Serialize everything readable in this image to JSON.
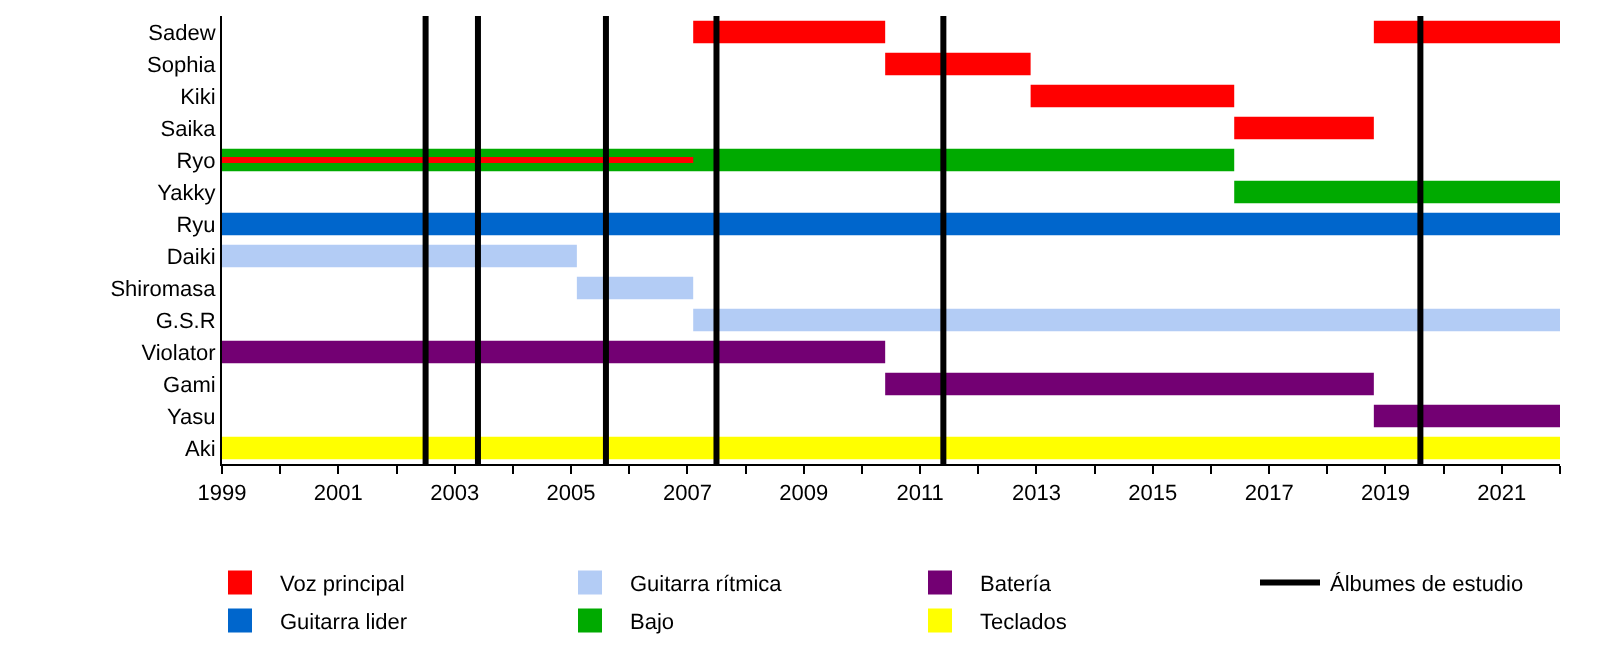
{
  "chart_data": {
    "type": "bar",
    "orientation": "horizontal",
    "categories": [
      "Sadew",
      "Sophia",
      "Kiki",
      "Saika",
      "Ryo",
      "Yakky",
      "Ryu",
      "Daiki",
      "Shiromasa",
      "G.S.R",
      "Violator",
      "Gami",
      "Yasu",
      "Aki"
    ],
    "series": [
      {
        "name": "Voz principal",
        "color": "#ff0000",
        "base": [
          2007.1,
          2010.4,
          2012.9,
          2016.4,
          1999,
          null,
          null,
          null,
          null,
          null,
          null,
          null,
          null,
          null
        ],
        "values": [
          3.3,
          2.5,
          3.5,
          2.4,
          8.1,
          null,
          null,
          null,
          null,
          null,
          null,
          null,
          null,
          null
        ]
      },
      {
        "color": "#ff0000",
        "base": [
          2018.8,
          null,
          null,
          null,
          null,
          null,
          null,
          null,
          null,
          null,
          null,
          null,
          null,
          null
        ],
        "values": [
          3.2,
          null,
          null,
          null,
          null,
          null,
          null,
          null,
          null,
          null,
          null,
          null,
          null,
          null
        ]
      },
      {
        "name": "Guitarra lider",
        "color": "#0066cc",
        "base": [
          null,
          null,
          null,
          null,
          null,
          null,
          1999,
          null,
          null,
          null,
          null,
          null,
          null,
          null
        ],
        "values": [
          null,
          null,
          null,
          null,
          null,
          null,
          23,
          null,
          null,
          null,
          null,
          null,
          null,
          null
        ]
      },
      {
        "name": "Guitarra rítmica",
        "color": "#b3ccf5",
        "base": [
          null,
          null,
          null,
          null,
          null,
          null,
          null,
          1999,
          2005.1,
          2007.1,
          null,
          null,
          null,
          null
        ],
        "values": [
          null,
          null,
          null,
          null,
          null,
          null,
          null,
          6.1,
          2.0,
          14.9,
          null,
          null,
          null,
          null
        ]
      },
      {
        "name": "Bajo",
        "color": "#00aa00",
        "base": [
          null,
          null,
          null,
          null,
          1999,
          2016.4,
          null,
          null,
          null,
          null,
          null,
          null,
          null,
          null
        ],
        "values": [
          null,
          null,
          null,
          null,
          17.4,
          5.6,
          null,
          null,
          null,
          null,
          null,
          null,
          null,
          null
        ]
      },
      {
        "name": "Batería",
        "color": "#730073",
        "base": [
          null,
          null,
          null,
          null,
          null,
          null,
          null,
          null,
          null,
          null,
          1999,
          2010.4,
          2018.8,
          null
        ],
        "values": [
          null,
          null,
          null,
          null,
          null,
          null,
          null,
          null,
          null,
          null,
          11.4,
          8.4,
          3.2,
          null
        ]
      },
      {
        "name": "Teclados",
        "color": "#ffff00",
        "base": [
          null,
          null,
          null,
          null,
          null,
          null,
          null,
          null,
          null,
          null,
          null,
          null,
          null,
          1999
        ],
        "values": [
          null,
          null,
          null,
          null,
          null,
          null,
          null,
          null,
          null,
          null,
          null,
          null,
          null,
          23
        ]
      }
    ],
    "ref_lines": [
      {
        "axis": "x",
        "value": 2002.5,
        "label": "Álbumes de estudio",
        "color": "#000000"
      },
      {
        "axis": "x",
        "value": 2003.4,
        "color": "#000000"
      },
      {
        "axis": "x",
        "value": 2005.6,
        "color": "#000000"
      },
      {
        "axis": "x",
        "value": 2007.5,
        "color": "#000000"
      },
      {
        "axis": "x",
        "value": 2011.4,
        "color": "#000000"
      },
      {
        "axis": "x",
        "value": 2019.6,
        "color": "#000000"
      }
    ],
    "xlim": [
      1999,
      2022
    ],
    "xticks": [
      1999,
      {
        "value": 2000,
        "label": null
      },
      2001,
      {
        "value": 2002,
        "label": null
      },
      2003,
      {
        "value": 2004,
        "label": null
      },
      2005,
      {
        "value": 2006,
        "label": null
      },
      2007,
      {
        "value": 2008,
        "label": null
      },
      2009,
      {
        "value": 2010,
        "label": null
      },
      2011,
      {
        "value": 2012,
        "label": null
      },
      2013,
      {
        "value": 2014,
        "label": null
      },
      2015,
      {
        "value": 2016,
        "label": null
      },
      2017,
      {
        "value": 2018,
        "label": null
      },
      2019,
      {
        "value": 2020,
        "label": null
      },
      2021,
      {
        "value": 2022,
        "label": null
      }
    ],
    "legend": "bottom"
  }
}
